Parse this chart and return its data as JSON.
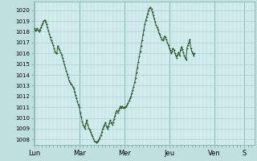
{
  "bg_color": "#c0e0e0",
  "plot_bg_color": "#d0ecec",
  "line_color": "#2d5a2d",
  "marker_color": "#2d5a2d",
  "yticks": [
    1008,
    1009,
    1010,
    1011,
    1012,
    1013,
    1014,
    1015,
    1016,
    1017,
    1018,
    1019,
    1020
  ],
  "ylim": [
    1007.5,
    1020.8
  ],
  "day_labels": [
    "Lun",
    "Mar",
    "Mer",
    "Jeu",
    "Ven",
    "S"
  ],
  "day_positions": [
    0,
    48,
    96,
    144,
    192,
    224
  ],
  "xlim": [
    -1,
    235
  ],
  "pressure_values": [
    1018.3,
    1018.1,
    1018.2,
    1018.3,
    1018.2,
    1018.0,
    1018.2,
    1018.4,
    1018.6,
    1018.8,
    1019.0,
    1019.1,
    1018.9,
    1018.7,
    1018.4,
    1018.1,
    1017.8,
    1017.5,
    1017.2,
    1017.0,
    1016.8,
    1016.5,
    1016.2,
    1016.0,
    1016.0,
    1016.7,
    1016.5,
    1016.3,
    1016.1,
    1015.9,
    1015.6,
    1015.3,
    1015.0,
    1014.7,
    1014.4,
    1014.1,
    1013.8,
    1013.5,
    1013.3,
    1013.2,
    1013.1,
    1012.9,
    1012.7,
    1012.4,
    1012.1,
    1011.8,
    1011.5,
    1011.2,
    1011.0,
    1010.5,
    1010.1,
    1009.7,
    1009.4,
    1009.2,
    1009.0,
    1009.5,
    1009.8,
    1009.4,
    1009.1,
    1008.9,
    1008.7,
    1008.5,
    1008.3,
    1008.1,
    1007.9,
    1007.8,
    1007.75,
    1007.8,
    1007.9,
    1008.0,
    1008.2,
    1008.4,
    1008.7,
    1009.0,
    1009.2,
    1009.4,
    1009.6,
    1009.2,
    1009.0,
    1009.2,
    1009.5,
    1009.8,
    1009.6,
    1009.4,
    1009.6,
    1009.9,
    1010.2,
    1010.5,
    1010.7,
    1010.5,
    1010.7,
    1010.9,
    1011.1,
    1010.9,
    1011.1,
    1010.9,
    1011.0,
    1011.0,
    1011.1,
    1011.2,
    1011.4,
    1011.6,
    1011.8,
    1012.0,
    1012.3,
    1012.6,
    1012.9,
    1013.3,
    1013.7,
    1014.2,
    1014.7,
    1015.2,
    1015.7,
    1016.2,
    1016.7,
    1017.2,
    1017.7,
    1018.2,
    1018.7,
    1019.1,
    1019.4,
    1019.7,
    1020.0,
    1020.2,
    1020.3,
    1020.1,
    1019.8,
    1019.5,
    1019.2,
    1018.9,
    1018.6,
    1018.4,
    1018.2,
    1017.9,
    1017.7,
    1017.5,
    1017.3,
    1017.2,
    1017.4,
    1017.6,
    1017.5,
    1017.3,
    1017.0,
    1016.8,
    1016.5,
    1016.3,
    1016.0,
    1016.2,
    1016.5,
    1016.3,
    1016.0,
    1015.8,
    1015.6,
    1015.9,
    1016.1,
    1015.8,
    1016.3,
    1016.6,
    1016.4,
    1016.1,
    1015.8,
    1015.6,
    1015.4,
    1016.5,
    1016.8,
    1017.0,
    1017.3,
    1016.5,
    1016.2,
    1016.0,
    1015.8,
    1016.0
  ]
}
